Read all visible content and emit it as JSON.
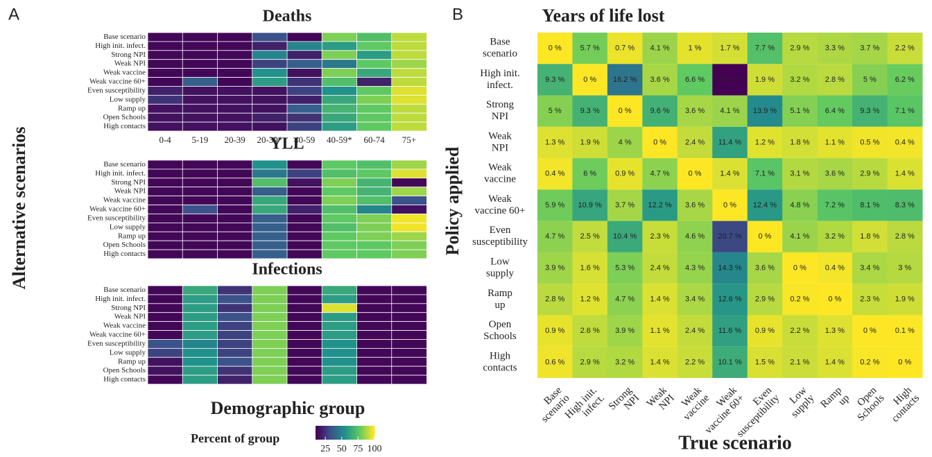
{
  "panel_a": {
    "label": "A",
    "ylabel": "Alternative scenarios",
    "xlabel": "Demographic group",
    "legend_title": "Percent of group",
    "legend_ticks": [
      25,
      50,
      75,
      100
    ],
    "legend_lim": [
      10,
      100
    ]
  },
  "panel_b": {
    "label": "B"
  },
  "chart_data": [
    {
      "type": "heatmap",
      "title": "Deaths",
      "colormap": "viridis",
      "clim": [
        0,
        100
      ],
      "x": [
        "0-4",
        "5-19",
        "20-39",
        "20-39*",
        "40-59",
        "40-59*",
        "60-74",
        "75+"
      ],
      "y": [
        "Base scenario",
        "High init. infect.",
        "Strong NPI",
        "Weak NPI",
        "Weak vaccine",
        "Weak vaccine 60+",
        "Even susceptibility",
        "Low supply",
        "Ramp up",
        "Open Schools",
        "High contacts"
      ],
      "values": [
        [
          2,
          2,
          2,
          25,
          2,
          80,
          70,
          90
        ],
        [
          2,
          2,
          2,
          10,
          45,
          55,
          75,
          90
        ],
        [
          2,
          2,
          2,
          45,
          10,
          80,
          55,
          90
        ],
        [
          2,
          2,
          2,
          20,
          30,
          40,
          75,
          85
        ],
        [
          2,
          2,
          2,
          50,
          5,
          80,
          60,
          90
        ],
        [
          2,
          30,
          2,
          55,
          15,
          70,
          10,
          90
        ],
        [
          10,
          5,
          5,
          5,
          20,
          50,
          75,
          95
        ],
        [
          15,
          5,
          5,
          5,
          10,
          60,
          80,
          95
        ],
        [
          5,
          5,
          5,
          5,
          30,
          65,
          75,
          90
        ],
        [
          5,
          5,
          5,
          10,
          15,
          60,
          75,
          90
        ],
        [
          5,
          5,
          5,
          5,
          20,
          55,
          75,
          90
        ]
      ]
    },
    {
      "type": "heatmap",
      "title": "YLL",
      "colormap": "viridis",
      "clim": [
        0,
        100
      ],
      "y": [
        "Base scenario",
        "High init. infect.",
        "Strong NPI",
        "Weak NPI",
        "Weak vaccine",
        "Weak vaccine 60+",
        "Even susceptibility",
        "Low supply",
        "Ramp up",
        "Open Schools",
        "High contacts"
      ],
      "values": [
        [
          2,
          2,
          2,
          50,
          2,
          75,
          70,
          85
        ],
        [
          2,
          2,
          2,
          40,
          20,
          70,
          75,
          95
        ],
        [
          2,
          2,
          2,
          70,
          5,
          80,
          65,
          2
        ],
        [
          2,
          2,
          2,
          30,
          2,
          75,
          65,
          85
        ],
        [
          2,
          2,
          2,
          60,
          2,
          80,
          70,
          25
        ],
        [
          2,
          25,
          2,
          60,
          10,
          70,
          45,
          5
        ],
        [
          2,
          2,
          2,
          30,
          2,
          75,
          80,
          98
        ],
        [
          2,
          2,
          2,
          30,
          2,
          70,
          80,
          98
        ],
        [
          2,
          2,
          2,
          30,
          2,
          75,
          80,
          85
        ],
        [
          2,
          2,
          2,
          30,
          2,
          75,
          75,
          80
        ],
        [
          2,
          2,
          2,
          30,
          2,
          75,
          75,
          80
        ]
      ]
    },
    {
      "type": "heatmap",
      "title": "Infections",
      "colormap": "viridis",
      "clim": [
        0,
        100
      ],
      "y": [
        "Base scenario",
        "High init. infect.",
        "Strong NPI",
        "Weak NPI",
        "Weak vaccine",
        "Weak vaccine 60+",
        "Even susceptibility",
        "Low supply",
        "Ramp up",
        "Open Schools",
        "High contacts"
      ],
      "values": [
        [
          2,
          60,
          15,
          80,
          2,
          60,
          2,
          2
        ],
        [
          2,
          55,
          25,
          80,
          2,
          55,
          2,
          2
        ],
        [
          2,
          55,
          15,
          80,
          2,
          95,
          2,
          2
        ],
        [
          2,
          55,
          25,
          80,
          2,
          55,
          2,
          2
        ],
        [
          2,
          55,
          20,
          80,
          2,
          55,
          2,
          2
        ],
        [
          2,
          55,
          20,
          80,
          2,
          55,
          2,
          2
        ],
        [
          25,
          45,
          20,
          80,
          2,
          50,
          2,
          2
        ],
        [
          20,
          50,
          20,
          80,
          2,
          50,
          2,
          2
        ],
        [
          5,
          50,
          25,
          80,
          2,
          50,
          2,
          2
        ],
        [
          5,
          55,
          15,
          80,
          2,
          55,
          2,
          2
        ],
        [
          2,
          55,
          10,
          80,
          2,
          55,
          2,
          2
        ]
      ]
    },
    {
      "type": "heatmap",
      "title": "Years of life lost",
      "xlabel": "True scenario",
      "ylabel": "Policy applied",
      "colormap": "viridis_r",
      "clim": [
        0,
        26.5
      ],
      "x": [
        [
          "Base",
          "scenario"
        ],
        [
          "High init.",
          "infect."
        ],
        [
          "Strong",
          "NPI"
        ],
        [
          "Weak",
          "NPI"
        ],
        [
          "Weak",
          "vaccine"
        ],
        [
          "Weak",
          "vaccine 60+"
        ],
        [
          "Even",
          "susceptibility"
        ],
        [
          "Low",
          "supply"
        ],
        [
          "Ramp",
          "up"
        ],
        [
          "Open",
          "Schools"
        ],
        [
          "High",
          "contacts"
        ]
      ],
      "y": [
        [
          "Base",
          "scenario"
        ],
        [
          "High init.",
          "infect."
        ],
        [
          "Strong",
          "NPI"
        ],
        [
          "Weak",
          "NPI"
        ],
        [
          "Weak",
          "vaccine"
        ],
        [
          "Weak",
          "vaccine 60+"
        ],
        [
          "Even",
          "susceptibility"
        ],
        [
          "Low",
          "supply"
        ],
        [
          "Ramp",
          "up"
        ],
        [
          "Open",
          "Schools"
        ],
        [
          "High",
          "contacts"
        ]
      ],
      "values": [
        [
          0,
          5.7,
          0.7,
          4.1,
          1,
          1.7,
          7.7,
          2.9,
          3.3,
          3.7,
          2.2
        ],
        [
          9.3,
          0,
          16.2,
          3.6,
          6.6,
          26.5,
          1.9,
          3.2,
          2.8,
          5,
          6.2
        ],
        [
          5,
          9.3,
          0,
          9.6,
          3.6,
          4.1,
          13.9,
          5.1,
          6.4,
          9.3,
          7.1
        ],
        [
          1.3,
          1.9,
          4,
          0,
          2.4,
          11.4,
          1.2,
          1.8,
          1.1,
          0.5,
          0.4
        ],
        [
          0.4,
          6,
          0.9,
          4.7,
          0,
          1.4,
          7.1,
          3.1,
          3.6,
          2.9,
          1.4
        ],
        [
          5.9,
          10.9,
          3.7,
          12.2,
          3.6,
          0,
          12.4,
          4.8,
          7.2,
          8.1,
          8.3
        ],
        [
          4.7,
          2.5,
          10.4,
          2.3,
          4.6,
          20.7,
          0,
          4.1,
          3.2,
          1.8,
          2.8
        ],
        [
          3.9,
          1.6,
          5.3,
          2.4,
          4.3,
          14.3,
          3.6,
          0,
          0.4,
          3.4,
          3
        ],
        [
          2.8,
          1.2,
          4.7,
          1.4,
          3.4,
          12.6,
          2.9,
          0.2,
          0,
          2.3,
          1.9
        ],
        [
          0.9,
          2.6,
          3.9,
          1.1,
          2.4,
          11.6,
          0.9,
          2.2,
          1.3,
          0,
          0.1
        ],
        [
          0.6,
          2.9,
          3.2,
          1.4,
          2.2,
          10.1,
          1.5,
          2.1,
          1.4,
          0.2,
          0
        ]
      ],
      "value_labels": [
        [
          "0 %",
          "5.7 %",
          "0.7 %",
          "4.1 %",
          "1 %",
          "1.7 %",
          "7.7 %",
          "2.9 %",
          "3.3 %",
          "3.7 %",
          "2.2 %"
        ],
        [
          "9.3 %",
          "0 %",
          "16.2 %",
          "3.6 %",
          "6.6 %",
          "26.5 %",
          "1.9 %",
          "3.2 %",
          "2.8 %",
          "5 %",
          "6.2 %"
        ],
        [
          "5 %",
          "9.3 %",
          "0 %",
          "9.6 %",
          "3.6 %",
          "4.1 %",
          "13.9 %",
          "5.1 %",
          "6.4 %",
          "9.3 %",
          "7.1 %"
        ],
        [
          "1.3 %",
          "1.9 %",
          "4 %",
          "0 %",
          "2.4 %",
          "11.4 %",
          "1.2 %",
          "1.8 %",
          "1.1 %",
          "0.5 %",
          "0.4 %"
        ],
        [
          "0.4 %",
          "6 %",
          "0.9 %",
          "4.7 %",
          "0 %",
          "1.4 %",
          "7.1 %",
          "3.1 %",
          "3.6 %",
          "2.9 %",
          "1.4 %"
        ],
        [
          "5.9 %",
          "10.9 %",
          "3.7 %",
          "12.2 %",
          "3.6 %",
          "0 %",
          "12.4 %",
          "4.8 %",
          "7.2 %",
          "8.1 %",
          "8.3 %"
        ],
        [
          "4.7 %",
          "2.5 %",
          "10.4 %",
          "2.3 %",
          "4.6 %",
          "20.7 %",
          "0 %",
          "4.1 %",
          "3.2 %",
          "1.8 %",
          "2.8 %"
        ],
        [
          "3.9 %",
          "1.6 %",
          "5.3 %",
          "2.4 %",
          "4.3 %",
          "14.3 %",
          "3.6 %",
          "0 %",
          "0.4 %",
          "3.4 %",
          "3 %"
        ],
        [
          "2.8 %",
          "1.2 %",
          "4.7 %",
          "1.4 %",
          "3.4 %",
          "12.6 %",
          "2.9 %",
          "0.2 %",
          "0 %",
          "2.3 %",
          "1.9 %"
        ],
        [
          "0.9 %",
          "2.6 %",
          "3.9 %",
          "1.1 %",
          "2.4 %",
          "11.6 %",
          "0.9 %",
          "2.2 %",
          "1.3 %",
          "0 %",
          "0.1 %"
        ],
        [
          "0.6 %",
          "2.9 %",
          "3.2 %",
          "1.4 %",
          "2.2 %",
          "10.1 %",
          "1.5 %",
          "2.1 %",
          "1.4 %",
          "0.2 %",
          "0 %"
        ]
      ]
    }
  ]
}
